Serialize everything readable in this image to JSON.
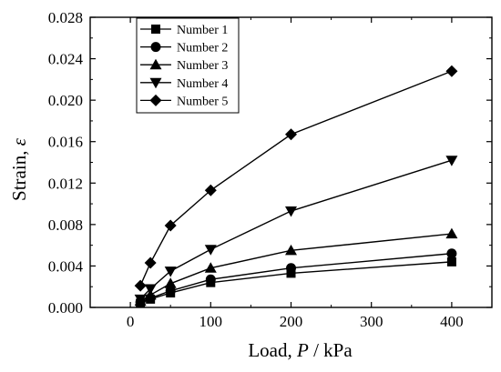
{
  "chart_data": {
    "type": "line",
    "xlabel_parts": [
      "Load, ",
      "P",
      " / kPa"
    ],
    "ylabel_parts": [
      "Strain, ",
      "ε"
    ],
    "xlim": [
      -50,
      450
    ],
    "ylim": [
      0,
      0.028
    ],
    "x_ticks": [
      0,
      100,
      200,
      300,
      400
    ],
    "x_tick_labels": [
      "0",
      "100",
      "200",
      "300",
      "400"
    ],
    "y_ticks": [
      0,
      0.004,
      0.008,
      0.012,
      0.016,
      0.02,
      0.024,
      0.028
    ],
    "y_tick_labels": [
      "0.000",
      "0.004",
      "0.008",
      "0.012",
      "0.016",
      "0.020",
      "0.024",
      "0.028"
    ],
    "grid": false,
    "legend_position": "top-left",
    "x": [
      12.5,
      25,
      50,
      100,
      200,
      400
    ],
    "series": [
      {
        "name": "Number 1",
        "marker": "square",
        "values": [
          0.0004,
          0.0008,
          0.0014,
          0.0024,
          0.0033,
          0.0044
        ]
      },
      {
        "name": "Number 2",
        "marker": "circle",
        "values": [
          0.0005,
          0.0009,
          0.0016,
          0.0027,
          0.0038,
          0.0052
        ]
      },
      {
        "name": "Number 3",
        "marker": "triangle-up",
        "values": [
          0.0006,
          0.0012,
          0.0023,
          0.0038,
          0.0055,
          0.0071
        ]
      },
      {
        "name": "Number 4",
        "marker": "triangle-down",
        "values": [
          0.0008,
          0.0018,
          0.0035,
          0.0056,
          0.0093,
          0.0142
        ]
      },
      {
        "name": "Number 5",
        "marker": "diamond",
        "values": [
          0.0021,
          0.0043,
          0.0079,
          0.0113,
          0.0167,
          0.0228
        ]
      }
    ]
  }
}
